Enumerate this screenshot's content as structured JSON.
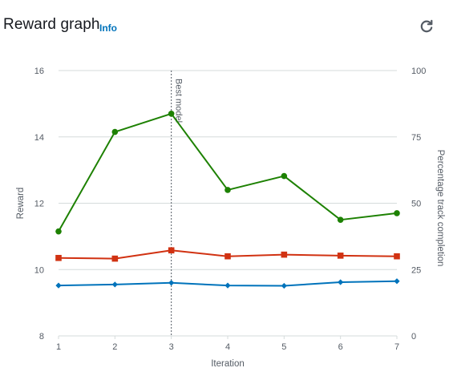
{
  "header": {
    "title": "Reward graph",
    "info_label": "Info"
  },
  "icons": {
    "refresh": "refresh-icon"
  },
  "chart_data": {
    "type": "line",
    "x": [
      1,
      2,
      3,
      4,
      5,
      6,
      7
    ],
    "x_tick_labels": [
      "1",
      "2",
      "3",
      "4",
      "5",
      "6",
      "7"
    ],
    "xlabel": "Iteration",
    "ylabel_left": "Reward",
    "ylabel_right": "Percentage track completion",
    "ylim_left": [
      8,
      16
    ],
    "yticks_left": [
      8,
      10,
      12,
      14,
      16
    ],
    "ylim_right": [
      0,
      100
    ],
    "yticks_right": [
      0,
      25,
      50,
      75,
      100
    ],
    "grid": true,
    "marker": {
      "x": 3,
      "label": "Best model"
    },
    "series": [
      {
        "axis": "left",
        "color": "#1d8102",
        "marker": "circle",
        "values": [
          11.15,
          14.15,
          14.7,
          12.4,
          12.82,
          11.5,
          11.7
        ]
      },
      {
        "axis": "left",
        "color": "#d13212",
        "marker": "square",
        "values": [
          10.35,
          10.33,
          10.58,
          10.4,
          10.45,
          10.42,
          10.4
        ]
      },
      {
        "axis": "left",
        "color": "#0073bb",
        "marker": "diamond",
        "values": [
          9.52,
          9.55,
          9.6,
          9.52,
          9.51,
          9.62,
          9.65
        ]
      }
    ],
    "colors": {
      "grid": "#d5dbdb",
      "axis_text": "#545b64"
    }
  }
}
